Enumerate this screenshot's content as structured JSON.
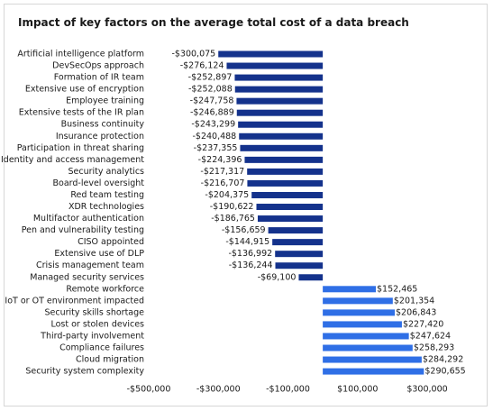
{
  "chart_data": {
    "type": "bar",
    "orientation": "horizontal",
    "title": "Impact of key factors on the average total cost of a data breach",
    "categories": [
      "Artificial intelligence platform",
      "DevSecOps approach",
      "Formation of IR team",
      "Extensive use of encryption",
      "Employee training",
      "Extensive tests of the IR plan",
      "Business continuity",
      "Insurance protection",
      "Participation in threat sharing",
      "Identity and access management",
      "Security analytics",
      "Board-level oversight",
      "Red team testing",
      "XDR technologies",
      "Multifactor authentication",
      "Pen and vulnerability testing",
      "CISO appointed",
      "Extensive use of DLP",
      "Crisis management team",
      "Managed security services",
      "Remote workforce",
      "IoT or OT environment impacted",
      "Security skills shortage",
      "Lost or stolen devices",
      "Third-party involvement",
      "Compliance failures",
      "Cloud migration",
      "Security system complexity"
    ],
    "values": [
      -300075,
      -276124,
      -252897,
      -252088,
      -247758,
      -246889,
      -243299,
      -240488,
      -237355,
      -224396,
      -217317,
      -216707,
      -204375,
      -190622,
      -186765,
      -156659,
      -144915,
      -136992,
      -136244,
      -69100,
      152465,
      201354,
      206843,
      227420,
      247624,
      258293,
      284292,
      290655
    ],
    "value_labels": [
      "-$300,075",
      "-$276,124",
      "-$252,897",
      "-$252,088",
      "-$247,758",
      "-$246,889",
      "-$243,299",
      "-$240,488",
      "-$237,355",
      "-$224,396",
      "-$217,317",
      "-$216,707",
      "-$204,375",
      "-$190,622",
      "-$186,765",
      "-$156,659",
      "-$144,915",
      "-$136,992",
      "-$136,244",
      "-$69,100",
      "$152,465",
      "$201,354",
      "$206,843",
      "$227,420",
      "$247,624",
      "$258,293",
      "$284,292",
      "$290,655"
    ],
    "negative_color": "#14328c",
    "positive_color": "#2f6fe6",
    "xlim": [
      -500000,
      300000
    ],
    "xticks": [
      {
        "value": -500000,
        "label": "-$500,000"
      },
      {
        "value": -300000,
        "label": "-$300,000"
      },
      {
        "value": -100000,
        "label": "-$100,000"
      },
      {
        "value": 100000,
        "label": "$100,000"
      },
      {
        "value": 300000,
        "label": "$300,000"
      }
    ],
    "grid": false
  }
}
